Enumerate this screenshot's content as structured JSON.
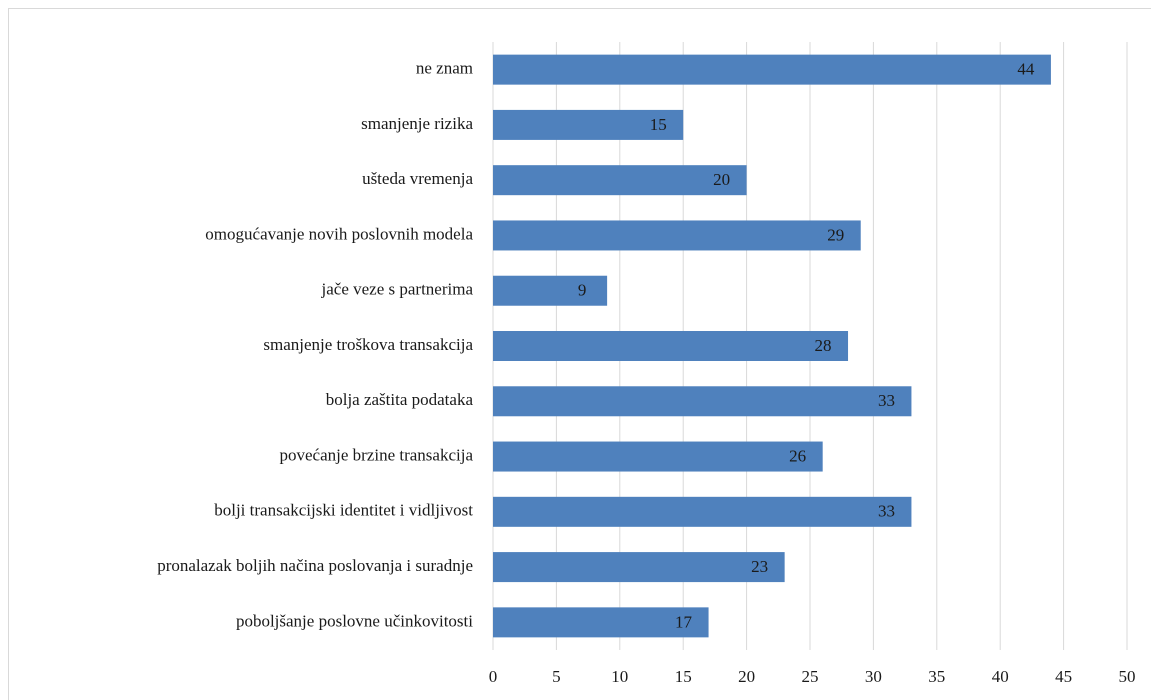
{
  "chart_data": {
    "type": "bar",
    "orientation": "horizontal",
    "categories": [
      "ne znam",
      "smanjenje rizika",
      "ušteda vremenja",
      "omogućavanje novih poslovnih modela",
      "jače veze s partnerima",
      "smanjenje troškova transakcija",
      "bolja zaštita podataka",
      "povećanje brzine transakcija",
      "bolji transakcijski identitet i vidljivost",
      "pronalazak boljih načina poslovanja i suradnje",
      "poboljšanje poslovne učinkovitosti"
    ],
    "values": [
      44,
      15,
      20,
      29,
      9,
      28,
      33,
      26,
      33,
      23,
      17
    ],
    "color": "#4f81bd",
    "xlim": [
      0,
      50
    ],
    "xticks": [
      0,
      5,
      10,
      15,
      20,
      25,
      30,
      35,
      40,
      45,
      50
    ],
    "grid": true,
    "data_labels": true
  }
}
